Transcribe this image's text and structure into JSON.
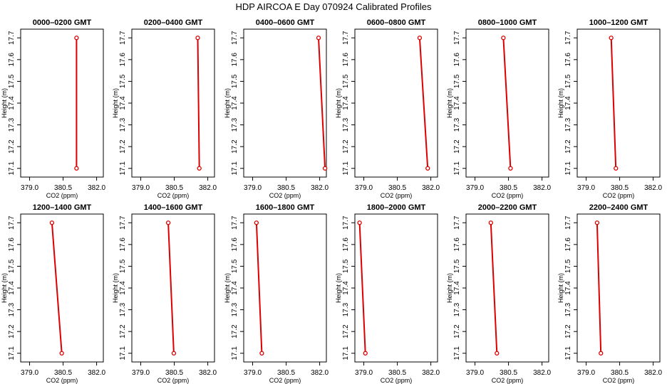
{
  "figure_title": "HDP AIRCOA E  Day 070924  Calibrated Profiles",
  "chart_data": [
    {
      "type": "line",
      "title": "0000–0200 GMT",
      "xlabel": "CO2 (ppm)",
      "ylabel": "Height (m)",
      "xlim": [
        378.6,
        382.3
      ],
      "ylim": [
        17.06,
        17.74
      ],
      "xticks": [
        "379.0",
        "380.5",
        "382.0"
      ],
      "yticks": [
        "17.1",
        "17.2",
        "17.3",
        "17.4",
        "17.5",
        "17.6",
        "17.7"
      ],
      "x": [
        381.1,
        381.1
      ],
      "y": [
        17.1,
        17.7
      ],
      "color": "#dd0000",
      "grid": false
    },
    {
      "type": "line",
      "title": "0200–0400 GMT",
      "xlabel": "CO2 (ppm)",
      "ylabel": "Height (m)",
      "xlim": [
        378.6,
        382.3
      ],
      "ylim": [
        17.06,
        17.74
      ],
      "xticks": [
        "379.0",
        "380.5",
        "382.0"
      ],
      "yticks": [
        "17.1",
        "17.2",
        "17.3",
        "17.4",
        "17.5",
        "17.6",
        "17.7"
      ],
      "x": [
        381.62,
        381.55
      ],
      "y": [
        17.1,
        17.7
      ],
      "color": "#dd0000",
      "grid": false
    },
    {
      "type": "line",
      "title": "0400–0600 GMT",
      "xlabel": "CO2 (ppm)",
      "ylabel": "Height (m)",
      "xlim": [
        378.6,
        382.3
      ],
      "ylim": [
        17.06,
        17.74
      ],
      "xticks": [
        "379.0",
        "380.5",
        "382.0"
      ],
      "yticks": [
        "17.1",
        "17.2",
        "17.3",
        "17.4",
        "17.5",
        "17.6",
        "17.7"
      ],
      "x": [
        382.24,
        381.95
      ],
      "y": [
        17.1,
        17.7
      ],
      "color": "#dd0000",
      "grid": false
    },
    {
      "type": "line",
      "title": "0600–0800 GMT",
      "xlabel": "CO2 (ppm)",
      "ylabel": "Height (m)",
      "xlim": [
        378.6,
        382.3
      ],
      "ylim": [
        17.06,
        17.74
      ],
      "xticks": [
        "379.0",
        "380.5",
        "382.0"
      ],
      "yticks": [
        "17.1",
        "17.2",
        "17.3",
        "17.4",
        "17.5",
        "17.6",
        "17.7"
      ],
      "x": [
        381.86,
        381.5
      ],
      "y": [
        17.1,
        17.7
      ],
      "color": "#dd0000",
      "grid": false
    },
    {
      "type": "line",
      "title": "0800–1000 GMT",
      "xlabel": "CO2 (ppm)",
      "ylabel": "Height (m)",
      "xlim": [
        378.6,
        382.3
      ],
      "ylim": [
        17.06,
        17.74
      ],
      "xticks": [
        "379.0",
        "380.5",
        "382.0"
      ],
      "yticks": [
        "17.1",
        "17.2",
        "17.3",
        "17.4",
        "17.5",
        "17.6",
        "17.7"
      ],
      "x": [
        380.59,
        380.27
      ],
      "y": [
        17.1,
        17.7
      ],
      "color": "#dd0000",
      "grid": false
    },
    {
      "type": "line",
      "title": "1000–1200 GMT",
      "xlabel": "CO2 (ppm)",
      "ylabel": "Height (m)",
      "xlim": [
        378.6,
        382.3
      ],
      "ylim": [
        17.06,
        17.74
      ],
      "xticks": [
        "379.0",
        "380.5",
        "382.0"
      ],
      "yticks": [
        "17.1",
        "17.2",
        "17.3",
        "17.4",
        "17.5",
        "17.6",
        "17.7"
      ],
      "x": [
        380.33,
        380.12
      ],
      "y": [
        17.1,
        17.7
      ],
      "color": "#dd0000",
      "grid": false
    },
    {
      "type": "line",
      "title": "1200–1400 GMT",
      "xlabel": "CO2 (ppm)",
      "ylabel": "Height (m)",
      "xlim": [
        378.6,
        382.3
      ],
      "ylim": [
        17.06,
        17.74
      ],
      "xticks": [
        "379.0",
        "380.5",
        "382.0"
      ],
      "yticks": [
        "17.1",
        "17.2",
        "17.3",
        "17.4",
        "17.5",
        "17.6",
        "17.7"
      ],
      "x": [
        380.44,
        380.0
      ],
      "y": [
        17.1,
        17.7
      ],
      "color": "#dd0000",
      "grid": false
    },
    {
      "type": "line",
      "title": "1400–1600 GMT",
      "xlabel": "CO2 (ppm)",
      "ylabel": "Height (m)",
      "xlim": [
        378.6,
        382.3
      ],
      "ylim": [
        17.06,
        17.74
      ],
      "xticks": [
        "379.0",
        "380.5",
        "382.0"
      ],
      "yticks": [
        "17.1",
        "17.2",
        "17.3",
        "17.4",
        "17.5",
        "17.6",
        "17.7"
      ],
      "x": [
        380.48,
        380.23
      ],
      "y": [
        17.1,
        17.7
      ],
      "color": "#dd0000",
      "grid": false
    },
    {
      "type": "line",
      "title": "1600–1800 GMT",
      "xlabel": "CO2 (ppm)",
      "ylabel": "Height (m)",
      "xlim": [
        378.6,
        382.3
      ],
      "ylim": [
        17.06,
        17.74
      ],
      "xticks": [
        "379.0",
        "380.5",
        "382.0"
      ],
      "yticks": [
        "17.1",
        "17.2",
        "17.3",
        "17.4",
        "17.5",
        "17.6",
        "17.7"
      ],
      "x": [
        379.41,
        379.17
      ],
      "y": [
        17.1,
        17.7
      ],
      "color": "#dd0000",
      "grid": false
    },
    {
      "type": "line",
      "title": "1800–2000 GMT",
      "xlabel": "CO2 (ppm)",
      "ylabel": "Height (m)",
      "xlim": [
        378.6,
        382.3
      ],
      "ylim": [
        17.06,
        17.74
      ],
      "xticks": [
        "379.0",
        "380.5",
        "382.0"
      ],
      "yticks": [
        "17.1",
        "17.2",
        "17.3",
        "17.4",
        "17.5",
        "17.6",
        "17.7"
      ],
      "x": [
        379.07,
        378.81
      ],
      "y": [
        17.1,
        17.7
      ],
      "color": "#dd0000",
      "grid": false
    },
    {
      "type": "line",
      "title": "2000–2200 GMT",
      "xlabel": "CO2 (ppm)",
      "ylabel": "Height (m)",
      "xlim": [
        378.6,
        382.3
      ],
      "ylim": [
        17.06,
        17.74
      ],
      "xticks": [
        "379.0",
        "380.5",
        "382.0"
      ],
      "yticks": [
        "17.1",
        "17.2",
        "17.3",
        "17.4",
        "17.5",
        "17.6",
        "17.7"
      ],
      "x": [
        379.98,
        379.71
      ],
      "y": [
        17.1,
        17.7
      ],
      "color": "#dd0000",
      "grid": false
    },
    {
      "type": "line",
      "title": "2200–2400 GMT",
      "xlabel": "CO2 (ppm)",
      "ylabel": "Height (m)",
      "xlim": [
        378.6,
        382.3
      ],
      "ylim": [
        17.06,
        17.74
      ],
      "xticks": [
        "379.0",
        "380.5",
        "382.0"
      ],
      "yticks": [
        "17.1",
        "17.2",
        "17.3",
        "17.4",
        "17.5",
        "17.6",
        "17.7"
      ],
      "x": [
        379.66,
        379.49
      ],
      "y": [
        17.1,
        17.7
      ],
      "color": "#dd0000",
      "grid": false
    }
  ]
}
